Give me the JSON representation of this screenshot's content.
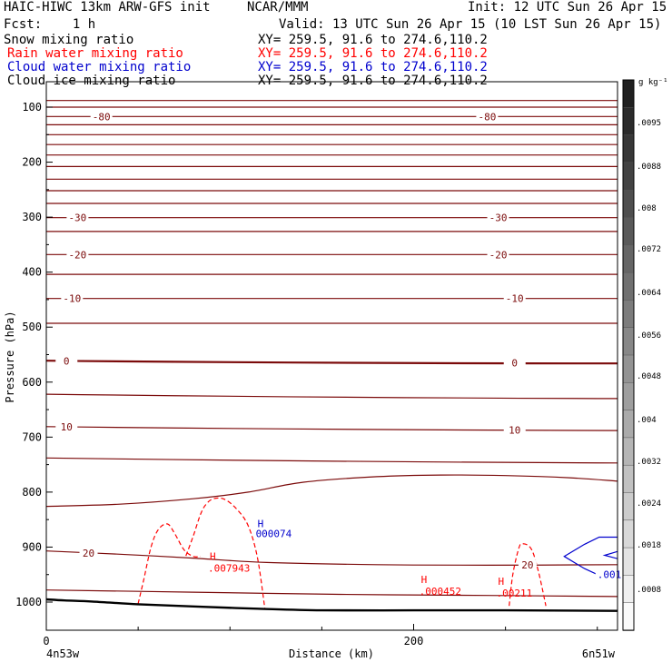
{
  "header": {
    "line1_left": "HAIC-HIWC 13km ARW-GFS init",
    "line1_center": "NCAR/MMM",
    "line1_right": "Init: 12 UTC Sun 26 Apr 15",
    "line2_left": "Fcst:    1 h",
    "line2_right": "Valid: 13 UTC Sun 26 Apr 15 (10 LST Sun 26 Apr 15)",
    "fields": [
      {
        "name": "Snow mixing ratio",
        "xy": "XY= 259.5, 91.6 to 274.6,110.2",
        "color": "#000000"
      },
      {
        "name": "Rain water mixing ratio",
        "xy": "XY= 259.5, 91.6 to 274.6,110.2",
        "color": "#ff0000"
      },
      {
        "name": "Cloud water mixing ratio",
        "xy": "XY= 259.5, 91.6 to 274.6,110.2",
        "color": "#0000cd"
      },
      {
        "name": "Cloud ice mixing ratio",
        "xy": "XY= 259.5, 91.6 to 274.6,110.2",
        "color": "#000000"
      }
    ]
  },
  "chart_data": {
    "type": "cross-section contour",
    "ylabel": "Pressure (hPa)",
    "xlabel": "Distance (km)",
    "y_ticks": [
      100,
      200,
      300,
      400,
      500,
      600,
      700,
      800,
      900,
      1000
    ],
    "ylim": [
      1050,
      80
    ],
    "x_ticks": [
      0,
      200
    ],
    "xlim": [
      0,
      311
    ],
    "x_left_label": "4n53w",
    "x_right_label": "6n51w",
    "colorbar": {
      "unit": "g kg⁻¹",
      "labels": [
        ".0095",
        ".0088",
        ".008",
        ".0072",
        ".0064",
        ".0056",
        ".0048",
        ".004",
        ".0032",
        ".0024",
        ".0018",
        ".0008"
      ]
    },
    "temperature_contours": {
      "color": "#7b0a0a",
      "labels": [
        "-80",
        "-30",
        "-20",
        "-10",
        "0",
        "10",
        "20"
      ],
      "levels": [
        {
          "p": [
            88,
            88
          ]
        },
        {
          "p": [
            100,
            100
          ]
        },
        {
          "p": [
            117,
            117
          ],
          "label": "-80",
          "lx": [
            30,
            240
          ]
        },
        {
          "p": [
            132,
            132
          ]
        },
        {
          "p": [
            150,
            150
          ]
        },
        {
          "p": [
            168,
            168
          ]
        },
        {
          "p": [
            187,
            187
          ]
        },
        {
          "p": [
            208,
            208
          ]
        },
        {
          "p": [
            231,
            231
          ]
        },
        {
          "p": [
            252,
            252
          ]
        },
        {
          "p": [
            275,
            275
          ]
        },
        {
          "p": [
            301,
            301
          ],
          "label": "-30",
          "lx": [
            17,
            246
          ]
        },
        {
          "p": [
            326,
            326
          ]
        },
        {
          "p": [
            368,
            368
          ],
          "label": "-20",
          "lx": [
            17,
            246
          ]
        },
        {
          "p": [
            404,
            404
          ]
        },
        {
          "p": [
            448,
            448
          ],
          "label": "-10",
          "lx": [
            14,
            255
          ]
        },
        {
          "p": [
            493,
            493
          ]
        },
        {
          "p": [
            561,
            566
          ],
          "label": "0",
          "lx": [
            11,
            255
          ],
          "bold": true
        },
        {
          "p": [
            622,
            630
          ]
        },
        {
          "p": [
            681,
            688
          ],
          "label": "10",
          "lx": [
            11,
            255
          ]
        },
        {
          "p": [
            738,
            747
          ]
        }
      ],
      "bumped": [
        {
          "x": [
            0,
            40,
            80,
            110,
            140,
            180,
            215,
            250,
            285,
            311
          ],
          "p": [
            826,
            822,
            812,
            800,
            782,
            772,
            769,
            770,
            774,
            780
          ]
        },
        {
          "x": [
            0,
            40,
            80,
            120,
            180,
            240,
            311
          ],
          "p": [
            907,
            913,
            920,
            928,
            932,
            933,
            932
          ],
          "label": "20",
          "lx": [
            23,
            262
          ]
        },
        {
          "x": [
            0,
            80,
            160,
            240,
            311
          ],
          "p": [
            978,
            982,
            986,
            988,
            990
          ]
        }
      ]
    },
    "terrain": {
      "x": [
        0,
        10,
        25,
        50,
        80,
        115,
        150,
        200,
        250,
        311
      ],
      "p": [
        995,
        997,
        999,
        1004,
        1008,
        1012,
        1015,
        1015,
        1015,
        1016
      ]
    },
    "rain_water": {
      "color": "#ff0000",
      "contours": [
        {
          "x": [
            50,
            53,
            57,
            61,
            66,
            70,
            75,
            80,
            84
          ],
          "p": [
            1003,
            960,
            900,
            868,
            858,
            876,
            905,
            917,
            917
          ]
        },
        {
          "x": [
            76,
            80,
            84,
            87,
            91,
            97,
            104,
            110,
            115,
            119
          ],
          "p": [
            916,
            880,
            840,
            822,
            812,
            813,
            832,
            862,
            920,
            1012
          ]
        },
        {
          "x": [
            252,
            254,
            257,
            259,
            264,
            268,
            272
          ],
          "p": [
            1007,
            950,
            905,
            894,
            903,
            945,
            1007
          ]
        }
      ],
      "maxima": [
        {
          "label": "H",
          "value": ".007943",
          "x": 90,
          "p": 935
        },
        {
          "label": "H",
          "value": ".000452",
          "x": 205,
          "p": 977
        },
        {
          "label": "H",
          "value": ".00211",
          "x": 247,
          "p": 980
        }
      ]
    },
    "cloud_water": {
      "color": "#0000cd",
      "contours": [
        {
          "x": [
            311,
            301,
            293,
            282,
            293,
            300,
            311
          ],
          "p": [
            882,
            882,
            895,
            917,
            939,
            950,
            950
          ]
        },
        {
          "x": [
            311,
            304,
            311
          ],
          "p": [
            908,
            915,
            921
          ]
        }
      ],
      "maxima": [
        {
          "label": "H",
          "value": "000074",
          "x": 114,
          "p": 875
        },
        {
          "label": "",
          "value": ".001",
          "x": 300,
          "p": 950
        }
      ]
    }
  }
}
